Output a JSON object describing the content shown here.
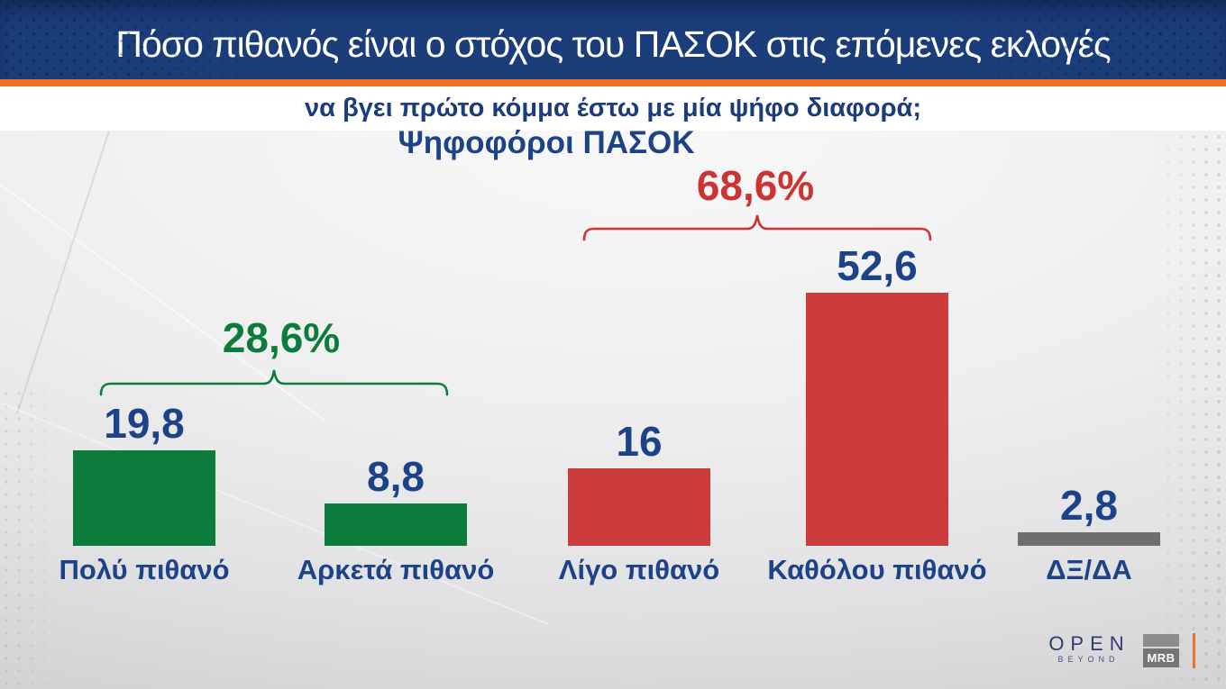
{
  "header": {
    "title": "Πόσο πιθανός είναι ο στόχος του ΠΑΣΟΚ στις επόμενες εκλογές",
    "subtitle": "να βγει πρώτο κόμμα έστω με μία ψήφο διαφορά;"
  },
  "chart_data": {
    "type": "bar",
    "title": "Ψηφοφόροι ΠΑΣΟΚ",
    "question": "Πόσο πιθανός είναι ο στόχος του ΠΑΣΟΚ στις επόμενες εκλογές να βγει πρώτο κόμμα έστω με μία ψήφο διαφορά;",
    "categories": [
      "Πολύ πιθανό",
      "Αρκετά πιθανό",
      "Λίγο πιθανό",
      "Καθόλου πιθανό",
      "ΔΞ/ΔΑ"
    ],
    "values": [
      19.8,
      8.8,
      16,
      52.6,
      2.8
    ],
    "value_labels": [
      "19,8",
      "8,8",
      "16",
      "52,6",
      "2,8"
    ],
    "bar_colors": [
      "#0b7c3b",
      "#0b7c3b",
      "#cc3c3c",
      "#cc3c3c",
      "#6e6e6e"
    ],
    "value_label_color": "#1c4288",
    "aggregates": [
      {
        "label": "28,6%",
        "color": "#0b7c3b",
        "covers": [
          "Πολύ πιθανό",
          "Αρκετά πιθανό"
        ]
      },
      {
        "label": "68,6%",
        "color": "#cc3333",
        "covers": [
          "Λίγο πιθανό",
          "Καθόλου πιθανό"
        ]
      }
    ],
    "ylim": [
      0,
      60
    ],
    "grid": false,
    "legend": false
  },
  "footer": {
    "open_logo": "OPEN",
    "open_tagline": "BEYOND",
    "mrb_logo": "MRB"
  },
  "colors": {
    "header_bg": "#1b3d7a",
    "accent_orange": "#f07125",
    "green": "#0b7c3b",
    "red": "#cc3c3c",
    "gray": "#6e6e6e",
    "text_blue": "#1c4288"
  }
}
